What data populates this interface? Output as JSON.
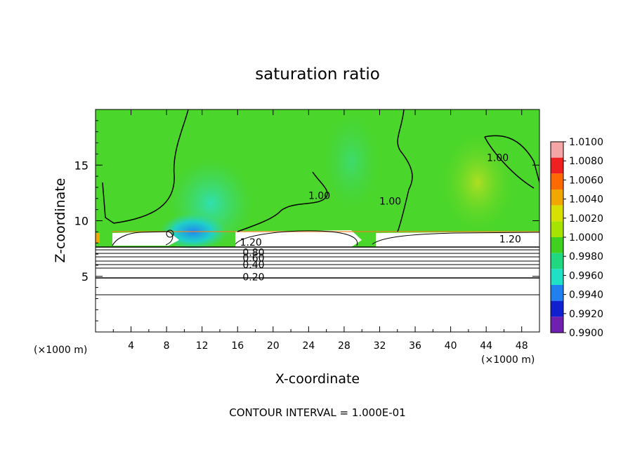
{
  "chart_data": {
    "type": "heatmap",
    "title": "saturation ratio",
    "xlabel": "X-coordinate",
    "ylabel": "Z-coordinate",
    "x_unit_left": "(×1000 m)",
    "x_unit_right": "(×1000 m)",
    "xlim": [
      0,
      50
    ],
    "ylim": [
      0,
      20
    ],
    "x_ticks": [
      4,
      8,
      12,
      16,
      20,
      24,
      28,
      32,
      36,
      40,
      44,
      48
    ],
    "y_ticks": [
      5,
      10,
      15
    ],
    "footer": "CONTOUR INTERVAL = 1.000E-01",
    "colorbar": {
      "labels": [
        "1.0100",
        "1.0080",
        "1.0060",
        "1.0040",
        "1.0020",
        "1.0000",
        "0.9980",
        "0.9960",
        "0.9940",
        "0.9920",
        "0.9900"
      ],
      "colors": [
        "#f4a6a6",
        "#ee2020",
        "#ff6a00",
        "#f0a800",
        "#d8e000",
        "#a6e400",
        "#40d020",
        "#20d880",
        "#20e0c8",
        "#2080f0",
        "#1020d0",
        "#7020b0"
      ]
    },
    "contour_labels": [
      {
        "text": "1.20",
        "x": 17.5,
        "y": 8.0
      },
      {
        "text": "0.80",
        "x": 17.8,
        "y": 7.1
      },
      {
        "text": "0.60",
        "x": 17.8,
        "y": 6.6
      },
      {
        "text": "0.40",
        "x": 17.8,
        "y": 6.0
      },
      {
        "text": "0.20",
        "x": 17.8,
        "y": 4.9
      },
      {
        "text": "1.20",
        "x": 46.7,
        "y": 8.3
      },
      {
        "text": "1.00",
        "x": 25.2,
        "y": 12.2
      },
      {
        "text": "1.00",
        "x": 33.2,
        "y": 11.7
      },
      {
        "text": "1.00",
        "x": 45.3,
        "y": 15.6
      }
    ],
    "contour_levels_flat": [
      0.2,
      0.4,
      0.6,
      0.8,
      1.0,
      1.2
    ],
    "contour_level_heights": [
      3.3,
      4.9,
      5.6,
      6.0,
      6.4,
      6.7,
      7.0,
      7.3,
      7.6
    ]
  }
}
